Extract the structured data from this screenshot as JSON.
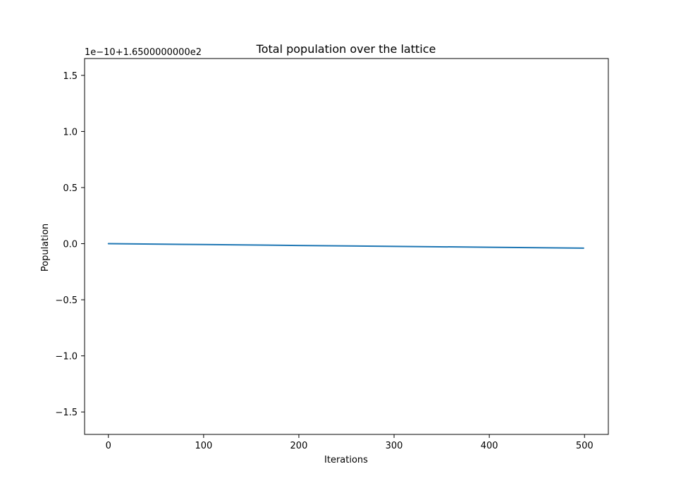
{
  "chart_data": {
    "type": "line",
    "title": "Total population over the lattice",
    "xlabel": "Iterations",
    "ylabel": "Population",
    "offset_text": "1e−10+1.6500000000e2",
    "xlim": [
      -25,
      525
    ],
    "ylim": [
      -1.7,
      1.65
    ],
    "x_ticks": [
      0,
      100,
      200,
      300,
      400,
      500
    ],
    "x_tick_labels": [
      "0",
      "100",
      "200",
      "300",
      "400",
      "500"
    ],
    "y_ticks": [
      1.5,
      1.0,
      0.5,
      0.0,
      -0.5,
      -1.0,
      -1.5
    ],
    "y_tick_labels": [
      "1.5",
      "1.0",
      "0.5",
      "0.0",
      "−0.5",
      "−1.0",
      "−1.5"
    ],
    "grid": false,
    "series": [
      {
        "color": "#1f77b4",
        "x": [
          0,
          100,
          200,
          300,
          400,
          499
        ],
        "y": [
          0.0,
          -0.008,
          -0.016,
          -0.024,
          -0.032,
          -0.04
        ]
      }
    ]
  }
}
